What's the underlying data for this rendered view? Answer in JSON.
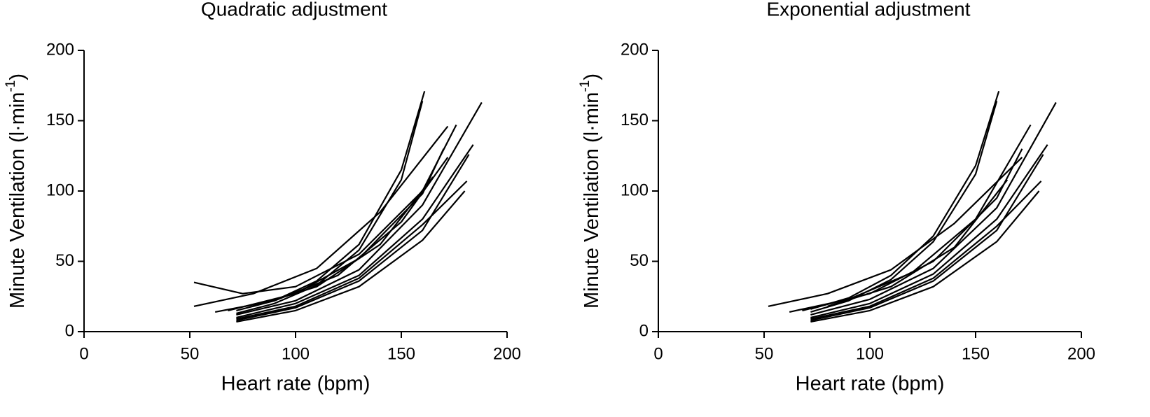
{
  "chart_data": [
    {
      "type": "line",
      "title": "Quadratic adjustment",
      "xlabel": "Heart rate (bpm)",
      "ylabel": [
        "Minute  Ventilation  (l·min",
        "-1",
        ")"
      ],
      "xlim": [
        0,
        200
      ],
      "ylim": [
        0,
        200
      ],
      "xticks": [
        0,
        50,
        100,
        150,
        200
      ],
      "yticks": [
        0,
        50,
        100,
        150,
        200
      ],
      "series": [
        {
          "color": "#000000",
          "x": [
            72,
            90,
            110,
            130,
            150,
            161
          ],
          "values": [
            15,
            22,
            36,
            62,
            115,
            171
          ]
        },
        {
          "color": "#000000",
          "x": [
            72,
            90,
            110,
            130,
            150,
            160
          ],
          "values": [
            13,
            20,
            33,
            58,
            108,
            164
          ]
        },
        {
          "color": "#000000",
          "x": [
            52,
            80,
            110,
            140,
            172
          ],
          "values": [
            18,
            27,
            45,
            85,
            146
          ]
        },
        {
          "color": "#000000",
          "x": [
            52,
            75,
            100,
            130,
            160,
            176
          ],
          "values": [
            35,
            27,
            32,
            55,
            100,
            147
          ]
        },
        {
          "color": "#000000",
          "x": [
            62,
            90,
            120,
            150,
            172
          ],
          "values": [
            14,
            22,
            40,
            78,
            124
          ]
        },
        {
          "color": "#000000",
          "x": [
            72,
            100,
            130,
            160,
            188
          ],
          "values": [
            12,
            22,
            44,
            90,
            163
          ]
        },
        {
          "color": "#000000",
          "x": [
            72,
            100,
            130,
            160,
            184
          ],
          "values": [
            10,
            20,
            40,
            80,
            133
          ]
        },
        {
          "color": "#000000",
          "x": [
            72,
            100,
            130,
            160,
            182
          ],
          "values": [
            8,
            17,
            36,
            72,
            126
          ]
        },
        {
          "color": "#000000",
          "x": [
            72,
            100,
            130,
            160,
            180
          ],
          "values": [
            7,
            15,
            32,
            65,
            100
          ]
        },
        {
          "color": "#000000",
          "x": [
            72,
            100,
            130,
            160,
            181
          ],
          "values": [
            9,
            18,
            38,
            76,
            107
          ]
        },
        {
          "color": "#000000",
          "x": [
            68,
            100,
            130,
            160,
            170
          ],
          "values": [
            15,
            27,
            52,
            98,
            130
          ]
        },
        {
          "color": "#000000",
          "x": [
            80,
            110,
            140,
            165
          ],
          "values": [
            18,
            32,
            62,
            110
          ]
        }
      ]
    },
    {
      "type": "line",
      "title": "Exponential adjustment",
      "xlabel": "Heart rate (bpm)",
      "ylabel": [
        "Minute  Ventilation  (l·min",
        "-1",
        ")"
      ],
      "xlim": [
        0,
        200
      ],
      "ylim": [
        0,
        200
      ],
      "xticks": [
        0,
        50,
        100,
        150,
        200
      ],
      "yticks": [
        0,
        50,
        100,
        150,
        200
      ],
      "series": [
        {
          "color": "#000000",
          "x": [
            72,
            90,
            110,
            130,
            150,
            161
          ],
          "values": [
            16,
            24,
            40,
            68,
            118,
            171
          ]
        },
        {
          "color": "#000000",
          "x": [
            72,
            90,
            110,
            130,
            150,
            160
          ],
          "values": [
            14,
            22,
            37,
            64,
            112,
            164
          ]
        },
        {
          "color": "#000000",
          "x": [
            52,
            80,
            110,
            140,
            172
          ],
          "values": [
            18,
            27,
            44,
            77,
            124
          ]
        },
        {
          "color": "#000000",
          "x": [
            62,
            90,
            120,
            150,
            176
          ],
          "values": [
            14,
            23,
            42,
            80,
            147
          ]
        },
        {
          "color": "#000000",
          "x": [
            72,
            100,
            130,
            160,
            188
          ],
          "values": [
            12,
            23,
            45,
            88,
            163
          ]
        },
        {
          "color": "#000000",
          "x": [
            72,
            100,
            130,
            160,
            184
          ],
          "values": [
            10,
            20,
            41,
            80,
            133
          ]
        },
        {
          "color": "#000000",
          "x": [
            72,
            100,
            130,
            160,
            182
          ],
          "values": [
            8,
            17,
            36,
            72,
            126
          ]
        },
        {
          "color": "#000000",
          "x": [
            72,
            100,
            130,
            160,
            180
          ],
          "values": [
            7,
            15,
            32,
            64,
            100
          ]
        },
        {
          "color": "#000000",
          "x": [
            72,
            100,
            130,
            160,
            181
          ],
          "values": [
            9,
            18,
            38,
            75,
            107
          ]
        },
        {
          "color": "#000000",
          "x": [
            68,
            100,
            130,
            160,
            172
          ],
          "values": [
            15,
            27,
            50,
            95,
            130
          ]
        },
        {
          "color": "#000000",
          "x": [
            80,
            110,
            140,
            165
          ],
          "values": [
            18,
            32,
            60,
            108
          ]
        }
      ]
    }
  ]
}
